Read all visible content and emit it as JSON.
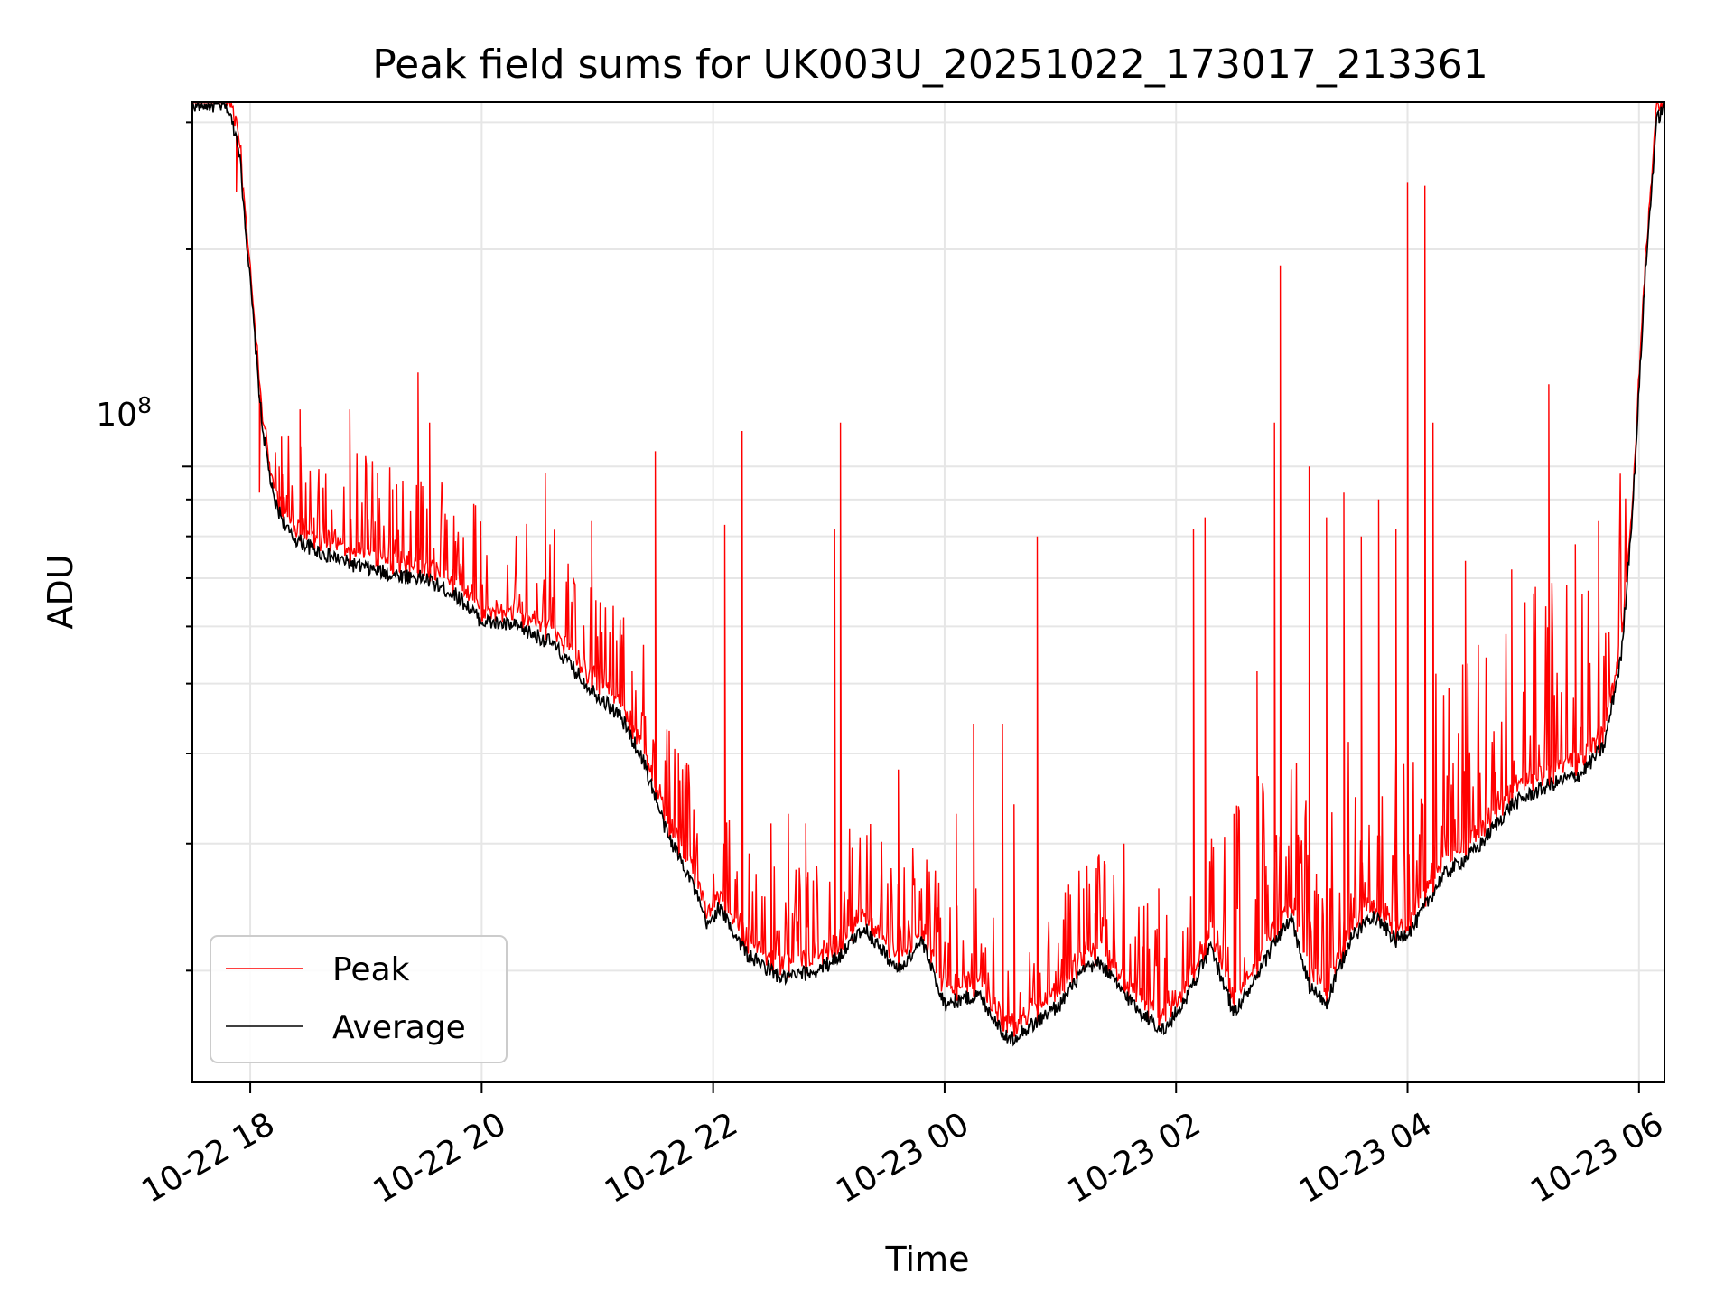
{
  "chart_data": {
    "type": "line",
    "title": "Peak field sums for UK003U_20251022_173017_213361",
    "xlabel": "Time",
    "ylabel": "ADU",
    "yscale": "log",
    "ylim": [
      14000000,
      320000000
    ],
    "xlim_hours": [
      -0.5,
      12.22
    ],
    "grid": true,
    "legend_position": "lower-left",
    "x_ticks": [
      {
        "label": "10-22 18",
        "hour": 0
      },
      {
        "label": "10-22 20",
        "hour": 2
      },
      {
        "label": "10-22 22",
        "hour": 4
      },
      {
        "label": "10-23 00",
        "hour": 6
      },
      {
        "label": "10-23 02",
        "hour": 8
      },
      {
        "label": "10-23 04",
        "hour": 10
      },
      {
        "label": "10-23 06",
        "hour": 12
      }
    ],
    "y_ticks": [
      {
        "label": "10",
        "exp": "8",
        "value": 100000000
      }
    ],
    "y_minor_ticks": [
      20000000,
      30000000,
      40000000,
      50000000,
      60000000,
      70000000,
      80000000,
      90000000,
      200000000,
      300000000
    ],
    "series": [
      {
        "name": "Peak",
        "color": "#ff0000"
      },
      {
        "name": "Average",
        "color": "#000000"
      }
    ],
    "average_baseline": [
      [
        -0.5,
        318000000
      ],
      [
        -0.2,
        316000000
      ],
      [
        -0.1,
        280000000
      ],
      [
        0.0,
        180000000
      ],
      [
        0.1,
        115000000
      ],
      [
        0.2,
        90000000
      ],
      [
        0.35,
        80000000
      ],
      [
        0.6,
        76000000
      ],
      [
        0.9,
        73000000
      ],
      [
        1.2,
        71000000
      ],
      [
        1.5,
        70000000
      ],
      [
        1.8,
        66000000
      ],
      [
        2.0,
        61000000
      ],
      [
        2.3,
        60000000
      ],
      [
        2.6,
        57000000
      ],
      [
        2.9,
        50000000
      ],
      [
        3.2,
        45000000
      ],
      [
        3.4,
        39000000
      ],
      [
        3.6,
        31000000
      ],
      [
        3.8,
        27000000
      ],
      [
        3.95,
        23000000
      ],
      [
        4.05,
        24500000
      ],
      [
        4.3,
        21000000
      ],
      [
        4.6,
        19500000
      ],
      [
        4.9,
        20000000
      ],
      [
        5.1,
        21000000
      ],
      [
        5.3,
        23000000
      ],
      [
        5.6,
        20000000
      ],
      [
        5.8,
        22000000
      ],
      [
        6.0,
        18000000
      ],
      [
        6.3,
        18500000
      ],
      [
        6.55,
        16000000
      ],
      [
        6.8,
        17000000
      ],
      [
        7.0,
        18000000
      ],
      [
        7.2,
        20000000
      ],
      [
        7.35,
        20500000
      ],
      [
        7.5,
        19000000
      ],
      [
        7.7,
        17500000
      ],
      [
        7.9,
        16500000
      ],
      [
        8.1,
        18500000
      ],
      [
        8.2,
        20000000
      ],
      [
        8.3,
        21500000
      ],
      [
        8.5,
        17500000
      ],
      [
        8.7,
        19500000
      ],
      [
        8.85,
        22000000
      ],
      [
        9.0,
        23500000
      ],
      [
        9.15,
        19000000
      ],
      [
        9.3,
        18000000
      ],
      [
        9.5,
        22000000
      ],
      [
        9.7,
        24000000
      ],
      [
        9.9,
        22000000
      ],
      [
        10.05,
        23000000
      ],
      [
        10.3,
        27000000
      ],
      [
        10.6,
        29500000
      ],
      [
        10.9,
        34000000
      ],
      [
        11.2,
        36000000
      ],
      [
        11.5,
        37500000
      ],
      [
        11.7,
        41000000
      ],
      [
        11.85,
        55000000
      ],
      [
        11.95,
        90000000
      ],
      [
        12.05,
        180000000
      ],
      [
        12.15,
        300000000
      ],
      [
        12.22,
        318000000
      ]
    ],
    "peak_spikes": [
      [
        -0.12,
        240000000
      ],
      [
        0.08,
        92000000
      ],
      [
        0.25,
        100000000
      ],
      [
        0.27,
        110000000
      ],
      [
        0.43,
        120000000
      ],
      [
        0.55,
        85000000
      ],
      [
        0.86,
        120000000
      ],
      [
        1.1,
        98000000
      ],
      [
        1.23,
        93000000
      ],
      [
        1.45,
        135000000
      ],
      [
        1.55,
        115000000
      ],
      [
        1.75,
        72000000
      ],
      [
        2.0,
        66000000
      ],
      [
        2.35,
        65000000
      ],
      [
        2.55,
        98000000
      ],
      [
        2.95,
        84000000
      ],
      [
        3.3,
        52000000
      ],
      [
        3.5,
        105000000
      ],
      [
        3.62,
        43000000
      ],
      [
        3.7,
        40000000
      ],
      [
        4.1,
        83000000
      ],
      [
        4.25,
        112000000
      ],
      [
        4.5,
        32000000
      ],
      [
        4.65,
        33000000
      ],
      [
        4.8,
        32000000
      ],
      [
        5.05,
        82000000
      ],
      [
        5.1,
        115000000
      ],
      [
        5.2,
        28000000
      ],
      [
        5.6,
        38000000
      ],
      [
        5.8,
        26000000
      ],
      [
        6.1,
        33000000
      ],
      [
        6.25,
        44000000
      ],
      [
        6.5,
        44000000
      ],
      [
        6.6,
        34000000
      ],
      [
        6.8,
        80000000
      ],
      [
        7.2,
        26000000
      ],
      [
        7.3,
        24000000
      ],
      [
        7.55,
        30000000
      ],
      [
        7.85,
        26000000
      ],
      [
        8.15,
        82000000
      ],
      [
        8.25,
        85000000
      ],
      [
        8.5,
        33000000
      ],
      [
        8.7,
        52000000
      ],
      [
        8.85,
        115000000
      ],
      [
        8.9,
        190000000
      ],
      [
        9.15,
        100000000
      ],
      [
        9.3,
        85000000
      ],
      [
        9.45,
        92000000
      ],
      [
        9.6,
        80000000
      ],
      [
        9.75,
        90000000
      ],
      [
        9.9,
        82000000
      ],
      [
        10.0,
        248000000
      ],
      [
        10.15,
        245000000
      ],
      [
        10.22,
        115000000
      ],
      [
        10.5,
        74000000
      ],
      [
        10.9,
        72000000
      ],
      [
        11.22,
        130000000
      ],
      [
        11.45,
        78000000
      ],
      [
        11.65,
        84000000
      ]
    ]
  },
  "legend": {
    "items": [
      {
        "label": "Peak"
      },
      {
        "label": "Average"
      }
    ]
  }
}
